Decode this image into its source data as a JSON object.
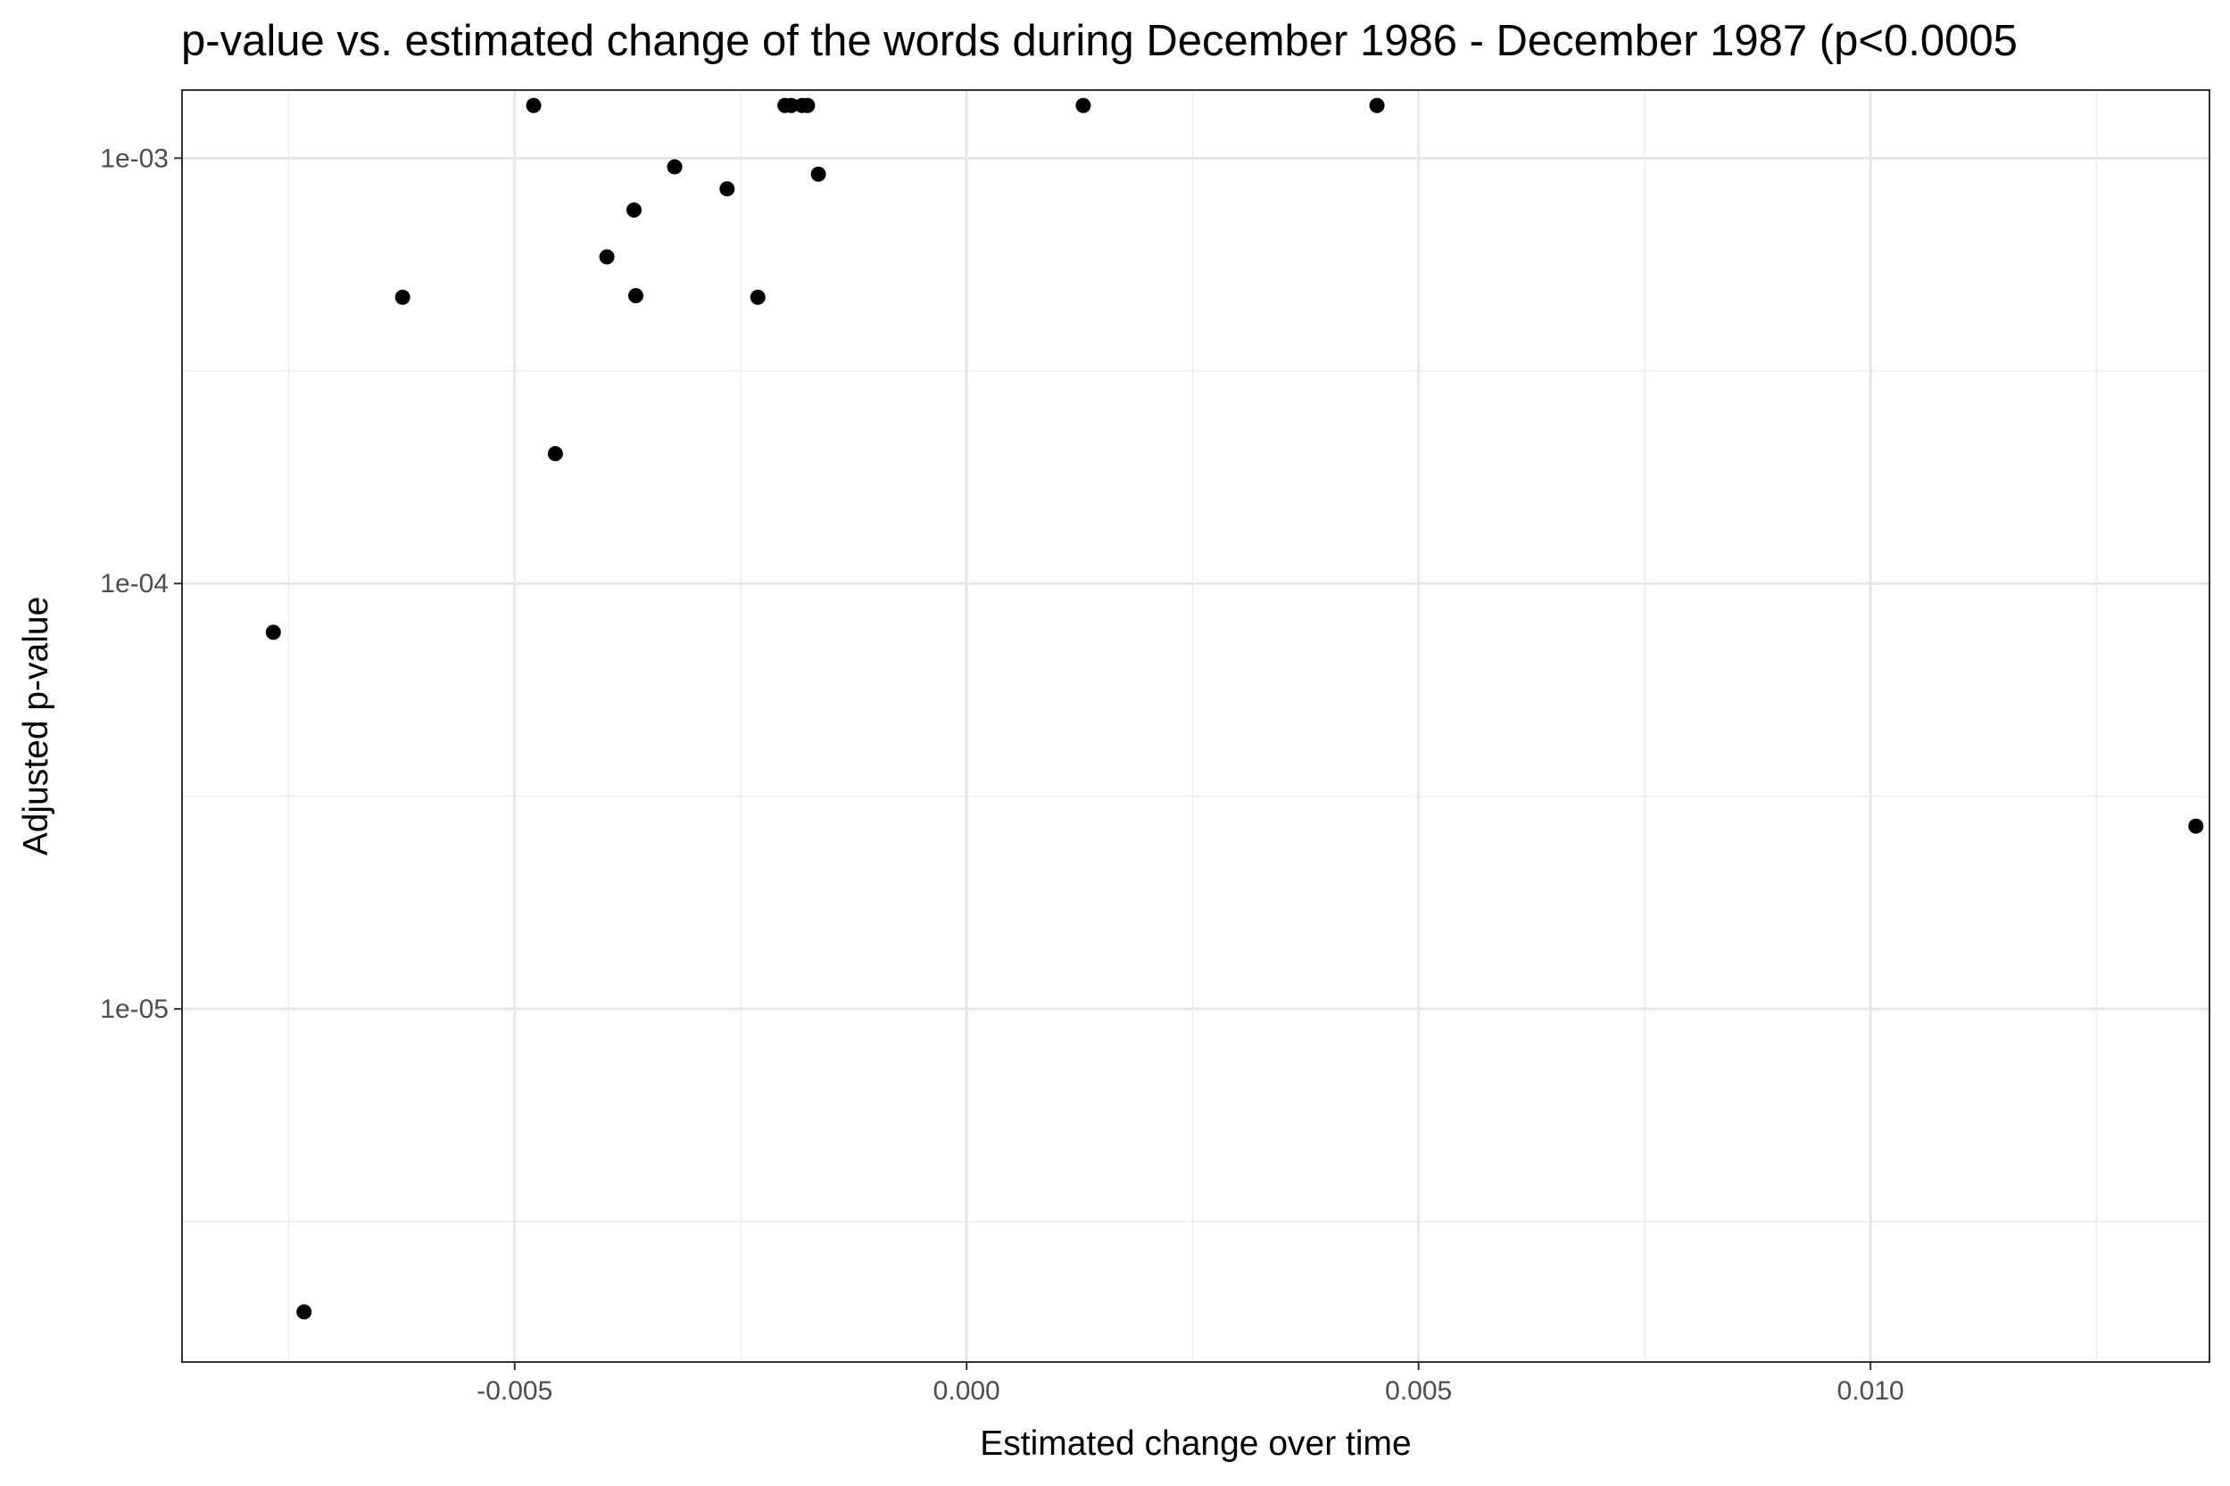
{
  "chart_data": {
    "type": "scatter",
    "title": "p-value vs. estimated change of the words during December 1986 - December 1987 (p<0.0005",
    "xlabel": "Estimated change over time",
    "ylabel": "Adjusted p-value",
    "xlim": [
      -0.00868,
      0.01375
    ],
    "ylim_log10": [
      -5.83,
      -2.84
    ],
    "y_scale": "log10",
    "x_ticks": [
      {
        "value": -0.005,
        "label": "-0.005"
      },
      {
        "value": 0.0,
        "label": "0.000"
      },
      {
        "value": 0.005,
        "label": "0.005"
      },
      {
        "value": 0.01,
        "label": "0.010"
      }
    ],
    "y_ticks": [
      {
        "value": 0.001,
        "label": "1e-03"
      },
      {
        "value": 0.0001,
        "label": "1e-04"
      },
      {
        "value": 1e-05,
        "label": "1e-05"
      }
    ],
    "grid": true,
    "legend": "none",
    "point_color": "#000000",
    "points": [
      {
        "x": -0.00479,
        "y": 0.00133
      },
      {
        "x": -0.00201,
        "y": 0.00133
      },
      {
        "x": -0.00194,
        "y": 0.00133
      },
      {
        "x": -0.00182,
        "y": 0.00133
      },
      {
        "x": -0.00176,
        "y": 0.00133
      },
      {
        "x": 0.00129,
        "y": 0.00133
      },
      {
        "x": 0.00454,
        "y": 0.00133
      },
      {
        "x": -0.00323,
        "y": 0.000954
      },
      {
        "x": -0.00164,
        "y": 0.000917
      },
      {
        "x": -0.00265,
        "y": 0.000847
      },
      {
        "x": -0.00368,
        "y": 0.000755
      },
      {
        "x": -0.00398,
        "y": 0.000586
      },
      {
        "x": -0.00624,
        "y": 0.000471
      },
      {
        "x": -0.00366,
        "y": 0.000475
      },
      {
        "x": -0.00231,
        "y": 0.000471
      },
      {
        "x": -0.00455,
        "y": 0.000202
      },
      {
        "x": -0.00767,
        "y": 7.68e-05
      },
      {
        "x": 0.0136,
        "y": 2.69e-05
      },
      {
        "x": -0.00733,
        "y": 1.94e-06
      }
    ]
  }
}
